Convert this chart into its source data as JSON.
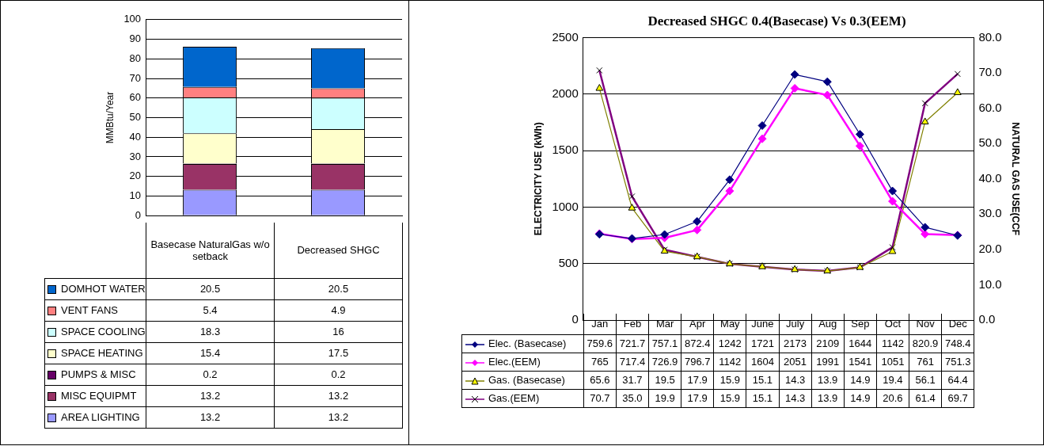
{
  "chart_data": [
    {
      "type": "bar",
      "stacked": true,
      "categories": [
        "Basecase NaturalGas w/o setback",
        "Decreased SHGC"
      ],
      "ylabel": "MMBtu/Year",
      "ylim": [
        0,
        100
      ],
      "yticks": [
        0,
        10,
        20,
        30,
        40,
        50,
        60,
        70,
        80,
        90,
        100
      ],
      "grid": "y",
      "legend": "bottom",
      "series": [
        {
          "name": "AREA LIGHTING",
          "color": "#9999ff",
          "values": [
            13.2,
            13.2
          ],
          "value_labels": [
            "13.2",
            "13.2"
          ]
        },
        {
          "name": "MISC  EQUIPMT",
          "color": "#993366",
          "values": [
            13.2,
            13.2
          ],
          "value_labels": [
            "13.2",
            "13.2"
          ]
        },
        {
          "name": "PUMPS & MISC",
          "color": "#660066",
          "values": [
            0.2,
            0.2
          ],
          "value_labels": [
            "0.2",
            "0.2"
          ]
        },
        {
          "name": "SPACE HEATING",
          "color": "#ffffcc",
          "values": [
            15.4,
            17.5
          ],
          "value_labels": [
            "15.4",
            "17.5"
          ]
        },
        {
          "name": "SPACE COOLING",
          "color": "#ccffff",
          "values": [
            18.3,
            16
          ],
          "value_labels": [
            "18.3",
            "16"
          ]
        },
        {
          "name": "VENT FANS",
          "color": "#ff8080",
          "values": [
            5.4,
            4.9
          ],
          "value_labels": [
            "5.4",
            "4.9"
          ]
        },
        {
          "name": "DOMHOT WATER",
          "color": "#0066cc",
          "values": [
            20.5,
            20.5
          ],
          "value_labels": [
            "20.5",
            "20.5"
          ]
        }
      ]
    },
    {
      "type": "line",
      "title": "Decreased SHGC 0.4(Basecase) Vs 0.3(EEM)",
      "categories": [
        "Jan",
        "Feb",
        "Mar",
        "Apr",
        "May",
        "June",
        "July",
        "Aug",
        "Sep",
        "Oct",
        "Nov",
        "Dec"
      ],
      "ylabel": "ELECTRICITY USE (kWh)",
      "y2label": "NATURAL GAS USE(CCF",
      "ylim": [
        0,
        2500
      ],
      "yticks": [
        0,
        500,
        1000,
        1500,
        2000,
        2500
      ],
      "y2lim": [
        0,
        80
      ],
      "y2ticks": [
        {
          "value": 0,
          "label": "0.0"
        },
        {
          "value": 10,
          "label": "10.0"
        },
        {
          "value": 20,
          "label": "20.0"
        },
        {
          "value": 30,
          "label": "30.0"
        },
        {
          "value": 40,
          "label": "40.0"
        },
        {
          "value": 50,
          "label": "50.0"
        },
        {
          "value": 60,
          "label": "60.0"
        },
        {
          "value": 70,
          "label": "70.0"
        },
        {
          "value": 80,
          "label": "80.0"
        }
      ],
      "grid": "y",
      "legend": "bottom",
      "series": [
        {
          "name": "Elec. (Basecase)",
          "color": "#000080",
          "marker": "diamond",
          "values": [
            759.6,
            721.7,
            757.1,
            872.4,
            1242,
            1721,
            2173,
            2109,
            1644,
            1142,
            820.9,
            748.4
          ],
          "value_labels": [
            "759.6",
            "721.7",
            "757.1",
            "872.4",
            "1242",
            "1721",
            "2173",
            "2109",
            "1644",
            "1142",
            "820.9",
            "748.4"
          ]
        },
        {
          "name": "Elec.(EEM)",
          "color": "#ff00ff",
          "marker": "diamond",
          "values": [
            765,
            717.4,
            726.9,
            796.7,
            1142,
            1604,
            2051,
            1991,
            1541,
            1051,
            761,
            751.3
          ],
          "value_labels": [
            "765",
            "717.4",
            "726.9",
            "796.7",
            "1142",
            "1604",
            "2051",
            "1991",
            "1541",
            "1051",
            "761",
            "751.3"
          ]
        },
        {
          "name": "Gas. (Basecase)",
          "color": "#808000",
          "marker": "triangle",
          "axis": "y2",
          "values": [
            65.6,
            31.7,
            19.5,
            17.9,
            15.9,
            15.1,
            14.3,
            13.9,
            14.9,
            19.4,
            56.1,
            64.4
          ],
          "value_labels": [
            "65.6",
            "31.7",
            "19.5",
            "17.9",
            "15.9",
            "15.1",
            "14.3",
            "13.9",
            "14.9",
            "19.4",
            "56.1",
            "64.4"
          ]
        },
        {
          "name": "Gas.(EEM)",
          "color": "#800080",
          "marker": "cross",
          "axis": "y2",
          "values": [
            70.7,
            35.0,
            19.9,
            17.9,
            15.9,
            15.1,
            14.3,
            13.9,
            14.9,
            20.6,
            61.4,
            69.7
          ],
          "value_labels": [
            "70.7",
            "35.0",
            "19.9",
            "17.9",
            "15.9",
            "15.1",
            "14.3",
            "13.9",
            "14.9",
            "20.6",
            "61.4",
            "69.7"
          ]
        }
      ]
    }
  ]
}
